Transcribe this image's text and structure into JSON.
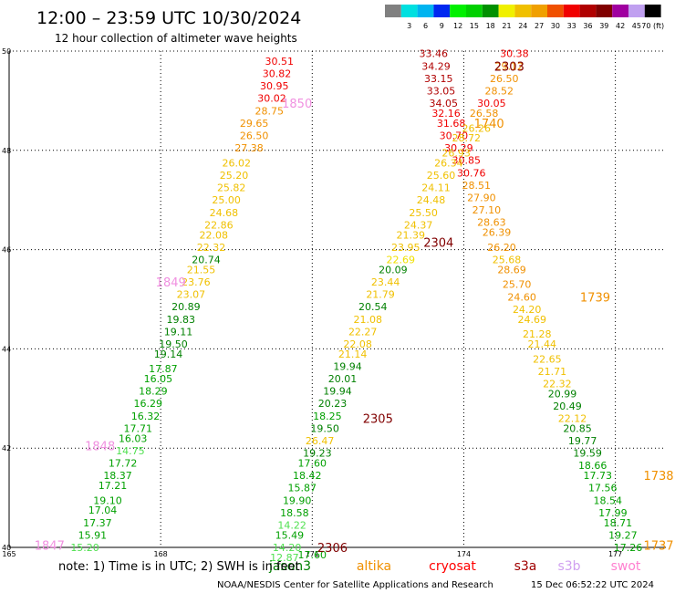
{
  "header": {
    "title": "12:00 – 23:59 UTC 10/30/2024",
    "subtitle": "12 hour collection of altimeter wave heights"
  },
  "legend": {
    "bins": [
      {
        "label": "",
        "color": "#808080"
      },
      {
        "label": "3",
        "color": "#00e0e0"
      },
      {
        "label": "6",
        "color": "#00b4f0"
      },
      {
        "label": "9",
        "color": "#0028f0"
      },
      {
        "label": "12",
        "color": "#00f000"
      },
      {
        "label": "15",
        "color": "#00d000"
      },
      {
        "label": "18",
        "color": "#009000"
      },
      {
        "label": "21",
        "color": "#f0f000"
      },
      {
        "label": "24",
        "color": "#f0c000"
      },
      {
        "label": "27",
        "color": "#f0a000"
      },
      {
        "label": "30",
        "color": "#f05000"
      },
      {
        "label": "33",
        "color": "#f00000"
      },
      {
        "label": "36",
        "color": "#b00000"
      },
      {
        "label": "39",
        "color": "#800000"
      },
      {
        "label": "42",
        "color": "#a000a0"
      },
      {
        "label": "45",
        "color": "#c0a0f0"
      },
      {
        "label": "70 (ft)",
        "color": "#000000"
      }
    ]
  },
  "satellites": [
    {
      "name": "jason3",
      "color": "#008000"
    },
    {
      "name": "altika",
      "color": "#f09000"
    },
    {
      "name": "cryosat",
      "color": "#ff0000"
    },
    {
      "name": "s3a",
      "color": "#a00000"
    },
    {
      "name": "s3b",
      "color": "#d0a0f0"
    },
    {
      "name": "swot",
      "color": "#ff80d0"
    }
  ],
  "footer": {
    "note": "note:  1) Time is in UTC; 2) SWH is in feet",
    "credit": "NOAA/NESDIS Center for Satellite Applications and Research",
    "timestamp": "15 Dec 06:52:22 UTC 2024"
  },
  "chart_data": {
    "type": "scatter",
    "title": "12:00 – 23:59 UTC 10/30/2024",
    "subtitle": "12 hour collection of altimeter wave heights",
    "xlim": [
      165,
      178
    ],
    "ylim": [
      40,
      50
    ],
    "x_ticks": [
      165,
      168,
      171,
      174,
      177
    ],
    "y_ticks": [
      40,
      42,
      44,
      46,
      48,
      50
    ],
    "colors": {
      "gray": "#808080",
      "lgreen": "#50e050",
      "green": "#00a000",
      "dgreen": "#008000",
      "yellow": "#f0e000",
      "gold": "#f0c000",
      "orange": "#f09000",
      "red": "#f00000",
      "dred": "#b00000",
      "mred": "#800000",
      "purple": "#a000a0",
      "pink": "#f090e0",
      "lilac": "#c0a0f0"
    },
    "pass_labels": [
      {
        "text": "1850",
        "x": 170.7,
        "y": 48.95,
        "color": "pink"
      },
      {
        "text": "1849",
        "x": 168.2,
        "y": 45.35,
        "color": "pink"
      },
      {
        "text": "1848",
        "x": 166.8,
        "y": 42.05,
        "color": "pink"
      },
      {
        "text": "1847",
        "x": 165.8,
        "y": 40.05,
        "color": "pink"
      },
      {
        "text": "2303",
        "x": 174.9,
        "y": 49.7,
        "color": "mred"
      },
      {
        "text": "1740",
        "x": 174.5,
        "y": 48.55,
        "color": "orange"
      },
      {
        "text": "2304",
        "x": 173.5,
        "y": 46.15,
        "color": "mred"
      },
      {
        "text": "1739",
        "x": 176.6,
        "y": 45.05,
        "color": "orange"
      },
      {
        "text": "2305",
        "x": 172.3,
        "y": 42.6,
        "color": "mred"
      },
      {
        "text": "1738",
        "x": 178.2,
        "y": 41.45,
        "color": "orange"
      },
      {
        "text": "2306",
        "x": 171.4,
        "y": 40.0,
        "color": "mred"
      },
      {
        "text": "1737",
        "x": 178.1,
        "y": 40.05,
        "color": "orange"
      }
    ],
    "series": [
      {
        "name": "",
        "points": [
          {
            "x": 170.35,
            "y": 49.8,
            "v": "30.51",
            "c": "red"
          },
          {
            "x": 170.3,
            "y": 49.55,
            "v": "30.82",
            "c": "red"
          },
          {
            "x": 170.25,
            "y": 49.3,
            "v": "30.95",
            "c": "red"
          },
          {
            "x": 170.2,
            "y": 49.05,
            "v": "30.02",
            "c": "red"
          },
          {
            "x": 170.15,
            "y": 48.8,
            "v": "28.75",
            "c": "orange"
          },
          {
            "x": 169.85,
            "y": 48.55,
            "v": "29.65",
            "c": "orange"
          },
          {
            "x": 169.85,
            "y": 48.3,
            "v": "26.50",
            "c": "orange"
          },
          {
            "x": 169.75,
            "y": 48.05,
            "v": "27.38",
            "c": "orange"
          },
          {
            "x": 169.5,
            "y": 47.75,
            "v": "26.02",
            "c": "gold"
          },
          {
            "x": 169.45,
            "y": 47.5,
            "v": "25.20",
            "c": "gold"
          },
          {
            "x": 169.4,
            "y": 47.25,
            "v": "25.82",
            "c": "gold"
          },
          {
            "x": 169.3,
            "y": 47.0,
            "v": "25.00",
            "c": "gold"
          },
          {
            "x": 169.25,
            "y": 46.75,
            "v": "24.68",
            "c": "gold"
          },
          {
            "x": 169.15,
            "y": 46.5,
            "v": "22.86",
            "c": "gold"
          },
          {
            "x": 169.05,
            "y": 46.3,
            "v": "22.08",
            "c": "gold"
          },
          {
            "x": 169.0,
            "y": 46.05,
            "v": "22.32",
            "c": "gold"
          },
          {
            "x": 168.9,
            "y": 45.8,
            "v": "20.74",
            "c": "dgreen"
          },
          {
            "x": 168.8,
            "y": 45.6,
            "v": "21.55",
            "c": "gold"
          },
          {
            "x": 168.7,
            "y": 45.35,
            "v": "23.76",
            "c": "gold"
          },
          {
            "x": 168.6,
            "y": 45.1,
            "v": "23.07",
            "c": "gold"
          },
          {
            "x": 168.5,
            "y": 44.85,
            "v": "20.89",
            "c": "dgreen"
          },
          {
            "x": 168.4,
            "y": 44.6,
            "v": "19.83",
            "c": "dgreen"
          },
          {
            "x": 168.35,
            "y": 44.35,
            "v": "19.11",
            "c": "dgreen"
          },
          {
            "x": 168.25,
            "y": 44.1,
            "v": "19.50",
            "c": "dgreen"
          },
          {
            "x": 168.15,
            "y": 43.9,
            "v": "19.14",
            "c": "dgreen"
          },
          {
            "x": 168.05,
            "y": 43.6,
            "v": "17.87",
            "c": "green"
          },
          {
            "x": 167.95,
            "y": 43.4,
            "v": "16.05",
            "c": "green"
          },
          {
            "x": 167.85,
            "y": 43.15,
            "v": "18.29",
            "c": "green"
          },
          {
            "x": 167.75,
            "y": 42.9,
            "v": "16.29",
            "c": "green"
          },
          {
            "x": 167.7,
            "y": 42.65,
            "v": "16.32",
            "c": "green"
          },
          {
            "x": 167.55,
            "y": 42.4,
            "v": "17.71",
            "c": "green"
          },
          {
            "x": 167.45,
            "y": 42.2,
            "v": "16.03",
            "c": "green"
          },
          {
            "x": 167.4,
            "y": 41.95,
            "v": "14.75",
            "c": "lgreen"
          },
          {
            "x": 167.25,
            "y": 41.7,
            "v": "17.72",
            "c": "green"
          },
          {
            "x": 167.15,
            "y": 41.45,
            "v": "18.37",
            "c": "green"
          },
          {
            "x": 167.05,
            "y": 41.25,
            "v": "17.21",
            "c": "green"
          },
          {
            "x": 166.95,
            "y": 40.95,
            "v": "19.10",
            "c": "green"
          },
          {
            "x": 166.85,
            "y": 40.75,
            "v": "17.04",
            "c": "green"
          },
          {
            "x": 166.75,
            "y": 40.5,
            "v": "17.37",
            "c": "green"
          },
          {
            "x": 166.65,
            "y": 40.25,
            "v": "15.91",
            "c": "green"
          },
          {
            "x": 166.5,
            "y": 40.0,
            "v": "15.20",
            "c": "lgreen"
          },
          {
            "x": 173.4,
            "y": 49.95,
            "v": "33.46",
            "c": "dred"
          },
          {
            "x": 173.45,
            "y": 49.7,
            "v": "34.29",
            "c": "dred"
          },
          {
            "x": 173.5,
            "y": 49.45,
            "v": "33.15",
            "c": "dred"
          },
          {
            "x": 173.55,
            "y": 49.2,
            "v": "33.05",
            "c": "dred"
          },
          {
            "x": 173.6,
            "y": 48.95,
            "v": "34.05",
            "c": "dred"
          },
          {
            "x": 173.65,
            "y": 48.75,
            "v": "32.16",
            "c": "red"
          },
          {
            "x": 173.75,
            "y": 48.55,
            "v": "31.68",
            "c": "red"
          },
          {
            "x": 173.8,
            "y": 48.3,
            "v": "30.70",
            "c": "red"
          },
          {
            "x": 173.9,
            "y": 48.05,
            "v": "30.29",
            "c": "red"
          },
          {
            "x": 174.05,
            "y": 47.8,
            "v": "30.85",
            "c": "red"
          },
          {
            "x": 174.15,
            "y": 47.55,
            "v": "30.76",
            "c": "red"
          },
          {
            "x": 174.25,
            "y": 47.3,
            "v": "28.51",
            "c": "orange"
          },
          {
            "x": 174.35,
            "y": 47.05,
            "v": "27.90",
            "c": "orange"
          },
          {
            "x": 174.45,
            "y": 46.8,
            "v": "27.10",
            "c": "orange"
          },
          {
            "x": 174.55,
            "y": 46.55,
            "v": "28.63",
            "c": "orange"
          },
          {
            "x": 174.65,
            "y": 46.35,
            "v": "26.39",
            "c": "orange"
          },
          {
            "x": 174.75,
            "y": 46.05,
            "v": "26.20",
            "c": "orange"
          },
          {
            "x": 174.85,
            "y": 45.8,
            "v": "25.68",
            "c": "gold"
          },
          {
            "x": 174.95,
            "y": 45.6,
            "v": "28.69",
            "c": "orange"
          },
          {
            "x": 175.05,
            "y": 45.3,
            "v": "25.70",
            "c": "orange"
          },
          {
            "x": 175.15,
            "y": 45.05,
            "v": "24.60",
            "c": "orange"
          },
          {
            "x": 175.25,
            "y": 44.8,
            "v": "24.20",
            "c": "gold"
          },
          {
            "x": 175.35,
            "y": 44.6,
            "v": "24.69",
            "c": "gold"
          },
          {
            "x": 175.45,
            "y": 44.3,
            "v": "21.28",
            "c": "gold"
          },
          {
            "x": 175.55,
            "y": 44.1,
            "v": "21.44",
            "c": "gold"
          },
          {
            "x": 175.65,
            "y": 43.8,
            "v": "22.65",
            "c": "gold"
          },
          {
            "x": 175.75,
            "y": 43.55,
            "v": "21.71",
            "c": "gold"
          },
          {
            "x": 175.85,
            "y": 43.3,
            "v": "22.32",
            "c": "gold"
          },
          {
            "x": 175.95,
            "y": 43.1,
            "v": "20.99",
            "c": "dgreen"
          },
          {
            "x": 176.05,
            "y": 42.85,
            "v": "20.49",
            "c": "dgreen"
          },
          {
            "x": 176.15,
            "y": 42.6,
            "v": "22.12",
            "c": "gold"
          },
          {
            "x": 176.25,
            "y": 42.4,
            "v": "20.85",
            "c": "dgreen"
          },
          {
            "x": 176.35,
            "y": 42.15,
            "v": "19.77",
            "c": "dgreen"
          },
          {
            "x": 176.45,
            "y": 41.9,
            "v": "19.59",
            "c": "dgreen"
          },
          {
            "x": 176.55,
            "y": 41.65,
            "v": "18.66",
            "c": "green"
          },
          {
            "x": 176.65,
            "y": 41.45,
            "v": "17.73",
            "c": "green"
          },
          {
            "x": 176.75,
            "y": 41.2,
            "v": "17.56",
            "c": "green"
          },
          {
            "x": 176.85,
            "y": 40.95,
            "v": "18.54",
            "c": "green"
          },
          {
            "x": 176.95,
            "y": 40.7,
            "v": "17.99",
            "c": "green"
          },
          {
            "x": 177.05,
            "y": 40.5,
            "v": "18.71",
            "c": "green"
          },
          {
            "x": 177.15,
            "y": 40.25,
            "v": "19.27",
            "c": "green"
          },
          {
            "x": 177.25,
            "y": 40.0,
            "v": "17.26",
            "c": "green"
          },
          {
            "x": 175.0,
            "y": 49.95,
            "v": "30.38",
            "c": "red"
          },
          {
            "x": 174.9,
            "y": 49.7,
            "v": "29.12",
            "c": "orange"
          },
          {
            "x": 174.8,
            "y": 49.45,
            "v": "26.50",
            "c": "orange"
          },
          {
            "x": 174.7,
            "y": 49.2,
            "v": "28.52",
            "c": "orange"
          },
          {
            "x": 174.55,
            "y": 48.95,
            "v": "30.05",
            "c": "red"
          },
          {
            "x": 174.4,
            "y": 48.75,
            "v": "26.58",
            "c": "orange"
          },
          {
            "x": 174.25,
            "y": 48.45,
            "v": "26.26",
            "c": "gold"
          },
          {
            "x": 174.05,
            "y": 48.25,
            "v": "28.72",
            "c": "gold"
          },
          {
            "x": 173.85,
            "y": 47.95,
            "v": "26.93",
            "c": "gold"
          },
          {
            "x": 173.7,
            "y": 47.75,
            "v": "26.34",
            "c": "gold"
          },
          {
            "x": 173.55,
            "y": 47.5,
            "v": "25.60",
            "c": "gold"
          },
          {
            "x": 173.45,
            "y": 47.25,
            "v": "24.11",
            "c": "gold"
          },
          {
            "x": 173.35,
            "y": 47.0,
            "v": "24.48",
            "c": "gold"
          },
          {
            "x": 173.2,
            "y": 46.75,
            "v": "25.50",
            "c": "gold"
          },
          {
            "x": 173.1,
            "y": 46.5,
            "v": "24.37",
            "c": "gold"
          },
          {
            "x": 172.95,
            "y": 46.3,
            "v": "21.39",
            "c": "gold"
          },
          {
            "x": 172.85,
            "y": 46.05,
            "v": "23.95",
            "c": "gold"
          },
          {
            "x": 172.75,
            "y": 45.8,
            "v": "22.69",
            "c": "yellow"
          },
          {
            "x": 172.6,
            "y": 45.6,
            "v": "20.09",
            "c": "dgreen"
          },
          {
            "x": 172.45,
            "y": 45.35,
            "v": "23.44",
            "c": "gold"
          },
          {
            "x": 172.35,
            "y": 45.1,
            "v": "21.79",
            "c": "gold"
          },
          {
            "x": 172.2,
            "y": 44.85,
            "v": "20.54",
            "c": "dgreen"
          },
          {
            "x": 172.1,
            "y": 44.6,
            "v": "21.08",
            "c": "gold"
          },
          {
            "x": 172.0,
            "y": 44.35,
            "v": "22.27",
            "c": "gold"
          },
          {
            "x": 171.9,
            "y": 44.1,
            "v": "22.08",
            "c": "gold"
          },
          {
            "x": 171.8,
            "y": 43.9,
            "v": "21.14",
            "c": "gold"
          },
          {
            "x": 171.7,
            "y": 43.65,
            "v": "19.94",
            "c": "dgreen"
          },
          {
            "x": 171.6,
            "y": 43.4,
            "v": "20.01",
            "c": "dgreen"
          },
          {
            "x": 171.5,
            "y": 43.15,
            "v": "19.94",
            "c": "dgreen"
          },
          {
            "x": 171.4,
            "y": 42.9,
            "v": "20.23",
            "c": "dgreen"
          },
          {
            "x": 171.3,
            "y": 42.65,
            "v": "18.25",
            "c": "green"
          },
          {
            "x": 171.25,
            "y": 42.4,
            "v": "19.50",
            "c": "dgreen"
          },
          {
            "x": 171.15,
            "y": 42.15,
            "v": "26.47",
            "c": "gold"
          },
          {
            "x": 171.1,
            "y": 41.9,
            "v": "19.23",
            "c": "dgreen"
          },
          {
            "x": 171.0,
            "y": 41.7,
            "v": "17.60",
            "c": "green"
          },
          {
            "x": 170.9,
            "y": 41.45,
            "v": "18.42",
            "c": "green"
          },
          {
            "x": 170.8,
            "y": 41.2,
            "v": "15.87",
            "c": "green"
          },
          {
            "x": 170.7,
            "y": 40.95,
            "v": "19.90",
            "c": "green"
          },
          {
            "x": 170.65,
            "y": 40.7,
            "v": "18.58",
            "c": "green"
          },
          {
            "x": 170.6,
            "y": 40.45,
            "v": "14.22",
            "c": "lgreen"
          },
          {
            "x": 170.55,
            "y": 40.25,
            "v": "15.49",
            "c": "green"
          },
          {
            "x": 170.5,
            "y": 40.0,
            "v": "14.20",
            "c": "lgreen"
          },
          {
            "x": 170.45,
            "y": 39.8,
            "v": "12.87",
            "c": "lgreen"
          },
          {
            "x": 171.0,
            "y": 39.85,
            "v": "17.60",
            "c": "green"
          }
        ]
      }
    ]
  }
}
